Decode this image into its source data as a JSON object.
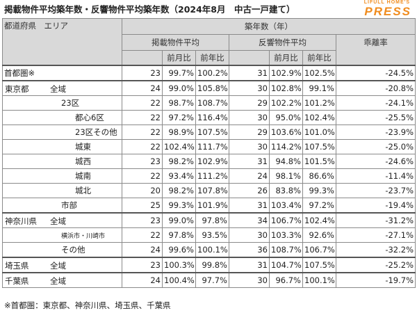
{
  "title": "掲載物件平均築年数・反響物件平均築年数（2024年8月　中古一戸建て）",
  "logo": {
    "top": "LIFULL HOME'S",
    "main": "PRESS"
  },
  "header": {
    "pref_area": "都道府県　エリア",
    "age_years": "築年数（年）",
    "listed_avg": "掲載物件平均",
    "response_avg": "反響物件平均",
    "divergence": "乖離率",
    "mom": "前月比",
    "yoy": "前年比"
  },
  "rows": [
    {
      "pref": "首都圏※",
      "area": "",
      "listed": "23",
      "listed_mom": "99.7%",
      "listed_yoy": "100.2%",
      "resp": "31",
      "resp_mom": "102.9%",
      "resp_yoy": "102.5%",
      "div": "-24.5%"
    },
    {
      "pref": "東京都",
      "area": "全域",
      "listed": "24",
      "listed_mom": "99.0%",
      "listed_yoy": "105.8%",
      "resp": "30",
      "resp_mom": "102.8%",
      "resp_yoy": "99.1%",
      "div": "-20.8%"
    },
    {
      "pref": "",
      "area": "23区",
      "listed": "22",
      "listed_mom": "98.7%",
      "listed_yoy": "108.7%",
      "resp": "29",
      "resp_mom": "102.2%",
      "resp_yoy": "101.2%",
      "div": "-24.1%"
    },
    {
      "pref": "",
      "area": "都心6区",
      "listed": "22",
      "listed_mom": "97.2%",
      "listed_yoy": "116.4%",
      "resp": "30",
      "resp_mom": "95.0%",
      "resp_yoy": "102.4%",
      "div": "-25.5%"
    },
    {
      "pref": "",
      "area": "23区その他",
      "listed": "22",
      "listed_mom": "98.9%",
      "listed_yoy": "107.5%",
      "resp": "29",
      "resp_mom": "103.6%",
      "resp_yoy": "101.0%",
      "div": "-23.9%"
    },
    {
      "pref": "",
      "area": "城東",
      "listed": "22",
      "listed_mom": "102.4%",
      "listed_yoy": "111.7%",
      "resp": "30",
      "resp_mom": "114.2%",
      "resp_yoy": "107.5%",
      "div": "-25.0%"
    },
    {
      "pref": "",
      "area": "城西",
      "listed": "23",
      "listed_mom": "98.2%",
      "listed_yoy": "102.9%",
      "resp": "31",
      "resp_mom": "94.8%",
      "resp_yoy": "101.5%",
      "div": "-24.6%"
    },
    {
      "pref": "",
      "area": "城南",
      "listed": "22",
      "listed_mom": "93.4%",
      "listed_yoy": "111.2%",
      "resp": "24",
      "resp_mom": "98.1%",
      "resp_yoy": "86.6%",
      "div": "-11.4%"
    },
    {
      "pref": "",
      "area": "城北",
      "listed": "20",
      "listed_mom": "98.2%",
      "listed_yoy": "107.8%",
      "resp": "26",
      "resp_mom": "83.8%",
      "resp_yoy": "99.3%",
      "div": "-23.7%"
    },
    {
      "pref": "",
      "area": "市部",
      "listed": "25",
      "listed_mom": "99.3%",
      "listed_yoy": "101.9%",
      "resp": "31",
      "resp_mom": "103.4%",
      "resp_yoy": "97.2%",
      "div": "-19.4%"
    },
    {
      "pref": "神奈川県",
      "area": "全域",
      "listed": "23",
      "listed_mom": "99.0%",
      "listed_yoy": "97.8%",
      "resp": "34",
      "resp_mom": "106.7%",
      "resp_yoy": "102.4%",
      "div": "-31.2%"
    },
    {
      "pref": "",
      "area": "横浜市・川崎市",
      "listed": "22",
      "listed_mom": "97.8%",
      "listed_yoy": "93.5%",
      "resp": "30",
      "resp_mom": "103.3%",
      "resp_yoy": "92.6%",
      "div": "-27.1%"
    },
    {
      "pref": "",
      "area": "その他",
      "listed": "24",
      "listed_mom": "99.6%",
      "listed_yoy": "100.1%",
      "resp": "36",
      "resp_mom": "108.7%",
      "resp_yoy": "106.7%",
      "div": "-32.2%"
    },
    {
      "pref": "埼玉県",
      "area": "全域",
      "listed": "23",
      "listed_mom": "100.3%",
      "listed_yoy": "99.8%",
      "resp": "31",
      "resp_mom": "104.7%",
      "resp_yoy": "107.5%",
      "div": "-25.2%"
    },
    {
      "pref": "千葉県",
      "area": "全域",
      "listed": "24",
      "listed_mom": "100.4%",
      "listed_yoy": "97.7%",
      "resp": "30",
      "resp_mom": "96.7%",
      "resp_yoy": "100.1%",
      "div": "-19.7%"
    }
  ],
  "footnote": "※首都圏：東京都、神奈川県、埼玉県、千葉県"
}
